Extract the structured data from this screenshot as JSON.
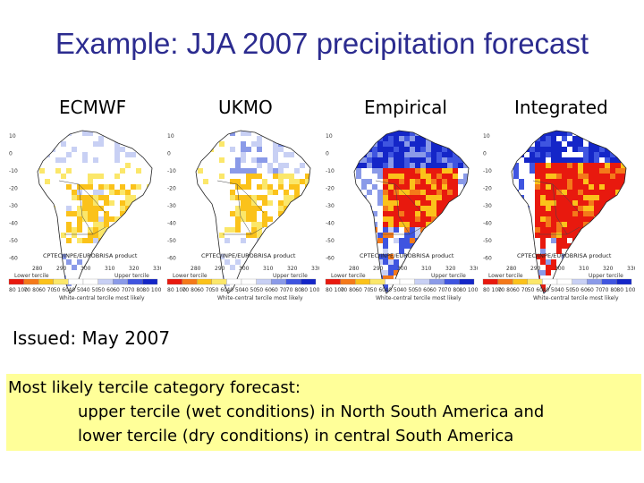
{
  "title": "Example: JJA 2007 precipitation forecast",
  "panels": [
    {
      "label": "ECMWF",
      "pattern": "ecmwf"
    },
    {
      "label": "UKMO",
      "pattern": "ukmo"
    },
    {
      "label": "Empirical",
      "pattern": "empirical"
    },
    {
      "label": "Integrated",
      "pattern": "integrated"
    }
  ],
  "map": {
    "lat_ticks": [
      "10",
      "0",
      "-10",
      "-20",
      "-30",
      "-40",
      "-50",
      "-60"
    ],
    "lon_ticks": [
      "280",
      "290",
      "300",
      "310",
      "320",
      "330"
    ],
    "credit": "CPTEC/INPE/EUROBRISA product",
    "lower_tercile_label": "Lower tercile",
    "upper_tercile_label": "Upper tercile",
    "legend_caption": "White-central tercile most likely",
    "legend_ticks": [
      "80 100",
      "70 80",
      "60 70",
      "50 60",
      "40 50",
      "40 50",
      "50 60",
      "60 70",
      "70 80",
      "80 100"
    ],
    "colors": {
      "lower_strong": "#e8190e",
      "lower_mid": "#f4791a",
      "lower_light": "#fbc21a",
      "lower_faint": "#fbe76a",
      "upper_faint": "#c8d0f4",
      "upper_light": "#8a9ae8",
      "upper_mid": "#3f55e0",
      "upper_strong": "#1426c8"
    }
  },
  "issued": "Issued: May 2007",
  "summary": {
    "line1": "Most likely tercile category forecast:",
    "line2": "upper tercile (wet conditions) in North South America and",
    "line3": "lower tercile (dry conditions) in central South America"
  }
}
